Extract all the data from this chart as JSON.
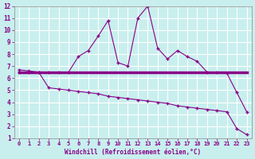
{
  "xlabel": "Windchill (Refroidissement éolien,°C)",
  "xlim": [
    -0.5,
    23.5
  ],
  "ylim": [
    1,
    12
  ],
  "xticks": [
    0,
    1,
    2,
    3,
    4,
    5,
    6,
    7,
    8,
    9,
    10,
    11,
    12,
    13,
    14,
    15,
    16,
    17,
    18,
    19,
    20,
    21,
    22,
    23
  ],
  "yticks": [
    1,
    2,
    3,
    4,
    5,
    6,
    7,
    8,
    9,
    10,
    11,
    12
  ],
  "background_color": "#c8efee",
  "grid_color": "#ffffff",
  "line_color": "#880088",
  "line1_x": [
    0,
    1,
    2,
    3,
    4,
    5,
    6,
    7,
    8,
    9,
    10,
    11,
    12,
    13,
    14,
    15,
    16,
    17,
    18,
    19,
    20,
    21,
    22,
    23
  ],
  "line1_y": [
    6.7,
    6.6,
    6.5,
    6.5,
    6.5,
    6.5,
    7.8,
    8.3,
    9.5,
    10.8,
    7.3,
    7.0,
    11.0,
    12.0,
    8.5,
    7.6,
    8.3,
    7.8,
    7.4,
    6.5,
    6.5,
    6.4,
    4.8,
    3.2
  ],
  "line2_x": [
    0,
    1,
    2,
    3,
    4,
    5,
    6,
    7,
    8,
    9,
    10,
    11,
    12,
    13,
    14,
    15,
    16,
    17,
    18,
    19,
    20,
    21,
    22,
    23
  ],
  "line2_y": [
    6.5,
    6.5,
    6.5,
    6.5,
    6.5,
    6.5,
    6.5,
    6.5,
    6.5,
    6.5,
    6.5,
    6.5,
    6.5,
    6.5,
    6.5,
    6.5,
    6.5,
    6.5,
    6.5,
    6.5,
    6.5,
    6.5,
    6.5,
    6.5
  ],
  "line3_x": [
    0,
    1,
    2,
    3,
    4,
    5,
    6,
    7,
    8,
    9,
    10,
    11,
    12,
    13,
    14,
    15,
    16,
    17,
    18,
    19,
    20,
    21,
    22,
    23
  ],
  "line3_y": [
    6.5,
    6.5,
    6.5,
    5.2,
    5.1,
    5.0,
    4.9,
    4.8,
    4.7,
    4.5,
    4.4,
    4.3,
    4.2,
    4.1,
    4.0,
    3.9,
    3.7,
    3.6,
    3.5,
    3.4,
    3.3,
    3.2,
    1.8,
    1.3
  ]
}
